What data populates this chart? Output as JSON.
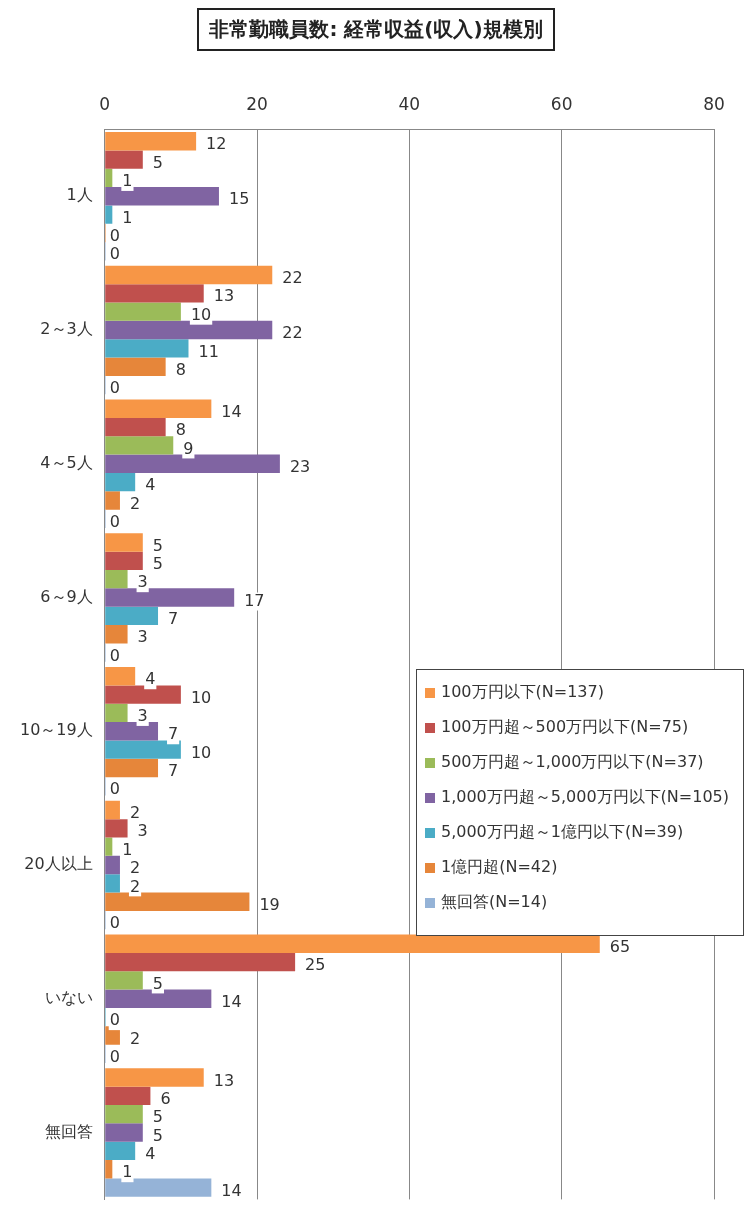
{
  "chart_data": {
    "type": "bar",
    "orientation": "horizontal",
    "title": "非常勤職員数: 経常収益(収入)規模別",
    "categories": [
      "1人",
      "2～3人",
      "4～5人",
      "6～9人",
      "10～19人",
      "20人以上",
      "いない",
      "無回答"
    ],
    "series": [
      {
        "name": "100万円以下(N=137)",
        "color": "#f79646",
        "values": [
          12,
          22,
          14,
          5,
          4,
          2,
          65,
          13
        ]
      },
      {
        "name": "100万円超～500万円以下(N=75)",
        "color": "#c0504d",
        "values": [
          5,
          13,
          8,
          5,
          10,
          3,
          25,
          6
        ]
      },
      {
        "name": "500万円超～1,000万円以下(N=37)",
        "color": "#9bbb59",
        "values": [
          1,
          10,
          9,
          3,
          3,
          1,
          5,
          5
        ]
      },
      {
        "name": "1,000万円超～5,000万円以下(N=105)",
        "color": "#8064a2",
        "values": [
          15,
          22,
          23,
          17,
          7,
          2,
          14,
          5
        ]
      },
      {
        "name": "5,000万円超～1億円以下(N=39)",
        "color": "#4bacc6",
        "values": [
          1,
          11,
          4,
          7,
          10,
          2,
          0,
          4
        ]
      },
      {
        "name": "1億円超(N=42)",
        "color": "#e6863a",
        "values": [
          0,
          8,
          2,
          3,
          7,
          19,
          2,
          1
        ]
      },
      {
        "name": "無回答(N=14)",
        "color": "#95b3d7",
        "values": [
          0,
          0,
          0,
          0,
          0,
          0,
          0,
          14
        ]
      }
    ],
    "xlim": [
      0,
      80
    ],
    "xticks": [
      0,
      20,
      40,
      60,
      80
    ],
    "grid": "x",
    "legend": "right",
    "data_labels": true
  }
}
